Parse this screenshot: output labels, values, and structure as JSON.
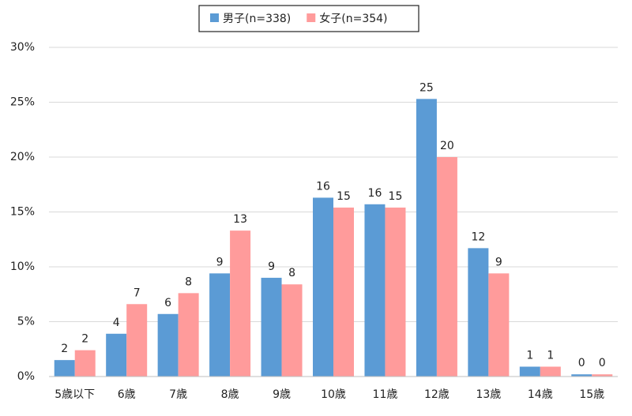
{
  "chart_data": {
    "type": "bar",
    "categories": [
      "5歳以下",
      "6歳",
      "7歳",
      "8歳",
      "9歳",
      "10歳",
      "11歳",
      "12歳",
      "13歳",
      "14歳",
      "15歳"
    ],
    "series": [
      {
        "name": "男子(n=338)",
        "color": "#5b9bd5",
        "values": [
          1.5,
          3.9,
          5.7,
          9.4,
          9.0,
          16.3,
          15.7,
          25.3,
          11.7,
          0.9,
          0.2
        ],
        "value_labels": [
          "2",
          "4",
          "6",
          "9",
          "9",
          "16",
          "16",
          "25",
          "12",
          "1",
          "0"
        ]
      },
      {
        "name": "女子(n=354)",
        "color": "#ff9b9b",
        "values": [
          2.4,
          6.6,
          7.6,
          13.3,
          8.4,
          15.4,
          15.4,
          20.0,
          9.4,
          0.9,
          0.2
        ],
        "value_labels": [
          "2",
          "7",
          "8",
          "13",
          "8",
          "15",
          "15",
          "20",
          "9",
          "1",
          "0"
        ]
      }
    ],
    "ylim": [
      0,
      30
    ],
    "yticks": [
      {
        "value": 0,
        "label": "0%"
      },
      {
        "value": 5,
        "label": "5%"
      },
      {
        "value": 10,
        "label": "10%"
      },
      {
        "value": 15,
        "label": "15%"
      },
      {
        "value": 20,
        "label": "20%"
      },
      {
        "value": 25,
        "label": "25%"
      },
      {
        "value": 30,
        "label": "30%"
      }
    ],
    "grid": true,
    "legend": "top"
  }
}
